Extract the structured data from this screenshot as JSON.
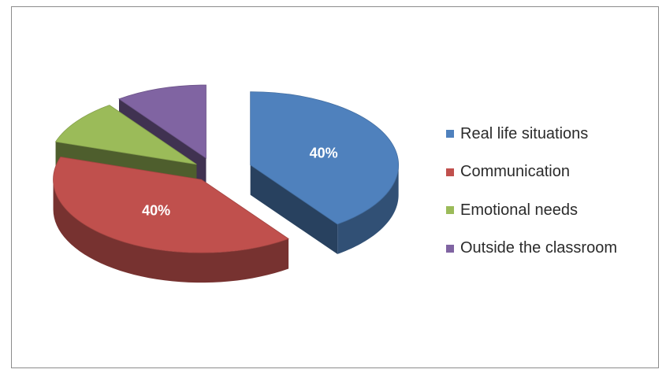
{
  "chart_data": {
    "type": "pie",
    "style": "3d-exploded",
    "categories": [
      "Real life situations",
      "Communication",
      "Emotional needs",
      "Outside the classroom"
    ],
    "values": [
      40,
      40,
      10,
      10
    ],
    "data_labels": [
      "40%",
      "40%",
      "",
      ""
    ],
    "colors": [
      "#4f81bd",
      "#c0504d",
      "#9bbb59",
      "#8064a2"
    ],
    "legend_position": "right"
  },
  "legend": {
    "items": [
      {
        "label": "Real life situations",
        "color": "#4f81bd"
      },
      {
        "label": "Communication",
        "color": "#c0504d"
      },
      {
        "label": "Emotional needs",
        "color": "#9bbb59"
      },
      {
        "label": "Outside the classroom",
        "color": "#8064a2"
      }
    ]
  }
}
